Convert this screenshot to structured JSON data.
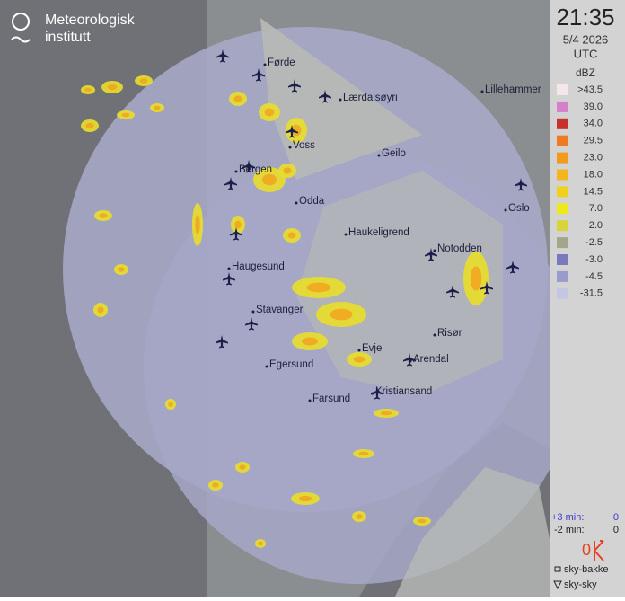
{
  "logo": {
    "line1": "Meteorologisk",
    "line2": "institutt"
  },
  "timestamp": {
    "time": "21:35",
    "date": "5/4 2026",
    "zone": "UTC"
  },
  "legend": {
    "unit": "dBZ",
    "entries": [
      {
        "label": ">43.5",
        "color": "#f3e7ea"
      },
      {
        "label": "39.0",
        "color": "#d57fc8"
      },
      {
        "label": "34.0",
        "color": "#c8302a"
      },
      {
        "label": "29.5",
        "color": "#ee7b20"
      },
      {
        "label": "23.0",
        "color": "#f29a1c"
      },
      {
        "label": "18.0",
        "color": "#f4b51e"
      },
      {
        "label": "14.5",
        "color": "#f0d21c"
      },
      {
        "label": "7.0",
        "color": "#eee91e"
      },
      {
        "label": "2.0",
        "color": "#d7d33a"
      },
      {
        "label": "-2.5",
        "color": "#a3a68a"
      },
      {
        "label": "-3.0",
        "color": "#7a79bd"
      },
      {
        "label": "-4.5",
        "color": "#9a9bcd"
      },
      {
        "label": "-31.5",
        "color": "#c5c6e2"
      }
    ]
  },
  "lightning": {
    "rows": [
      {
        "label": "+3 min:",
        "count": 0
      },
      {
        "label": "-2 min:",
        "count": 0
      }
    ],
    "total": 0
  },
  "sites": {
    "ground": "sky-bakke",
    "cloud": "sky-sky"
  },
  "places": [
    {
      "name": "Førde"
    },
    {
      "name": "Lærdalsøyri"
    },
    {
      "name": "Lillehammer"
    },
    {
      "name": "Voss"
    },
    {
      "name": "Geilo"
    },
    {
      "name": "Bergen"
    },
    {
      "name": "Odda"
    },
    {
      "name": "Oslo"
    },
    {
      "name": "Haukeligrend"
    },
    {
      "name": "Notodden"
    },
    {
      "name": "Haugesund"
    },
    {
      "name": "Stavanger"
    },
    {
      "name": "Risør"
    },
    {
      "name": "Evje"
    },
    {
      "name": "Arendal"
    },
    {
      "name": "Egersund"
    },
    {
      "name": "Kristiansand"
    },
    {
      "name": "Farsund"
    }
  ]
}
